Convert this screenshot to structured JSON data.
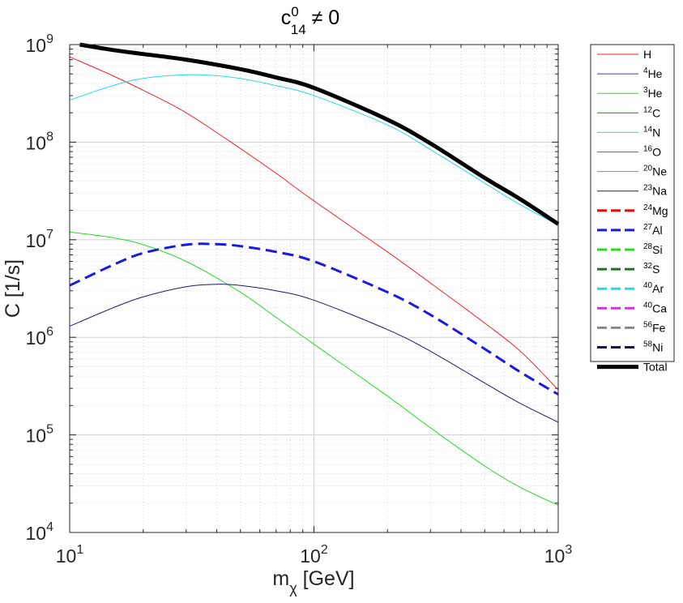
{
  "chart_data": {
    "type": "line",
    "title": {
      "base": "c",
      "sup": "0",
      "sub": "14",
      "rest": " ≠ 0"
    },
    "xlabel": {
      "base": "m",
      "sub": "χ",
      "rest": " [GeV]"
    },
    "ylabel": "C [1/s]",
    "xscale": "log",
    "yscale": "log",
    "xlim": [
      10,
      1000
    ],
    "ylim": [
      10000,
      1000000000
    ],
    "grid": true,
    "legend_position": "outside-right",
    "xticks": [
      {
        "value": 10,
        "base": "10",
        "exp": "1"
      },
      {
        "value": 100,
        "base": "10",
        "exp": "2"
      },
      {
        "value": 1000,
        "base": "10",
        "exp": "3"
      }
    ],
    "yticks": [
      {
        "value": 10000,
        "base": "10",
        "exp": "4"
      },
      {
        "value": 100000,
        "base": "10",
        "exp": "5"
      },
      {
        "value": 1000000,
        "base": "10",
        "exp": "6"
      },
      {
        "value": 10000000,
        "base": "10",
        "exp": "7"
      },
      {
        "value": 100000000,
        "base": "10",
        "exp": "8"
      },
      {
        "value": 1000000000,
        "base": "10",
        "exp": "9"
      }
    ],
    "series": [
      {
        "name": "H",
        "mass": "",
        "label": "H",
        "color": "#ff2020",
        "style": "solid",
        "width": 1,
        "x": [
          10,
          15,
          20,
          30,
          50,
          70,
          100,
          200,
          300,
          500,
          700,
          1000
        ],
        "y": [
          750000000,
          480000000,
          340000000,
          200000000,
          86000000,
          48000000,
          25000000,
          7500000,
          3600000,
          1400000,
          720000,
          290000
        ]
      },
      {
        "name": "4He",
        "mass": "4",
        "label": "He",
        "color": "#3a3aaa",
        "style": "solid",
        "width": 1,
        "x": [],
        "y": []
      },
      {
        "name": "3He",
        "mass": "3",
        "label": "He",
        "color": "#22dd22",
        "style": "solid",
        "width": 1,
        "x": [
          10,
          15,
          20,
          30,
          50,
          70,
          100,
          200,
          300,
          500,
          700,
          1000
        ],
        "y": [
          12000000,
          10500000,
          8900000,
          6000000,
          2900000,
          1600000,
          850000,
          250000,
          118000,
          48000,
          29000,
          19000
        ]
      },
      {
        "name": "12C",
        "mass": "12",
        "label": "C",
        "color": "#188818",
        "style": "solid",
        "width": 1,
        "x": [],
        "y": []
      },
      {
        "name": "14N",
        "mass": "14",
        "label": "N",
        "color": "#22dddd",
        "style": "solid",
        "width": 1,
        "x": [
          10,
          15,
          20,
          30,
          40,
          50,
          70,
          100,
          200,
          300,
          500,
          700,
          1000
        ],
        "y": [
          270000000,
          380000000,
          450000000,
          490000000,
          480000000,
          450000000,
          380000000,
          300000000,
          150000000,
          84000000,
          38000000,
          22800000,
          14200000
        ]
      },
      {
        "name": "16O",
        "mass": "16",
        "label": "O",
        "color": "#dd22dd",
        "style": "solid",
        "width": 1,
        "x": [],
        "y": []
      },
      {
        "name": "20Ne",
        "mass": "20",
        "label": "Ne",
        "color": "#888888",
        "style": "solid",
        "width": 1,
        "x": [],
        "y": []
      },
      {
        "name": "23Na",
        "mass": "23",
        "label": "Na",
        "color": "#1a1a70",
        "style": "solid",
        "width": 1,
        "x": [
          10,
          15,
          20,
          30,
          40,
          50,
          70,
          100,
          200,
          300,
          500,
          700,
          1000
        ],
        "y": [
          1300000,
          2000000,
          2600000,
          3300000,
          3500000,
          3400000,
          3000000,
          2400000,
          1200000,
          720000,
          340000,
          210000,
          135000
        ]
      },
      {
        "name": "24Mg",
        "mass": "24",
        "label": "Mg",
        "color": "#dd1010",
        "style": "dashed",
        "width": 3,
        "x": [],
        "y": []
      },
      {
        "name": "27Al",
        "mass": "27",
        "label": "Al",
        "color": "#1a1ae0",
        "style": "dashed",
        "width": 3,
        "x": [
          10,
          15,
          20,
          30,
          40,
          50,
          70,
          100,
          200,
          300,
          500,
          700,
          1000
        ],
        "y": [
          3400000,
          5500000,
          7300000,
          8900000,
          9000000,
          8600000,
          7500000,
          6000000,
          2900000,
          1700000,
          760000,
          440000,
          260000
        ]
      },
      {
        "name": "28Si",
        "mass": "28",
        "label": "Si",
        "color": "#22dd22",
        "style": "dashed",
        "width": 3,
        "x": [],
        "y": []
      },
      {
        "name": "32S",
        "mass": "32",
        "label": "S",
        "color": "#187818",
        "style": "dashed",
        "width": 3,
        "x": [],
        "y": []
      },
      {
        "name": "40Ar",
        "mass": "40",
        "label": "Ar",
        "color": "#22dddd",
        "style": "dashed",
        "width": 3,
        "x": [],
        "y": []
      },
      {
        "name": "40Ca",
        "mass": "40",
        "label": "Ca",
        "color": "#ee22ee",
        "style": "dashed",
        "width": 3,
        "x": [],
        "y": []
      },
      {
        "name": "56Fe",
        "mass": "56",
        "label": "Fe",
        "color": "#888888",
        "style": "dashed",
        "width": 3,
        "x": [],
        "y": []
      },
      {
        "name": "58Ni",
        "mass": "58",
        "label": "Ni",
        "color": "#101070",
        "style": "dashed",
        "width": 3,
        "x": [],
        "y": []
      },
      {
        "name": "Total",
        "mass": "",
        "label": "Total",
        "color": "#000000",
        "style": "solid",
        "width": 5,
        "x": [
          11,
          15,
          20,
          30,
          50,
          70,
          100,
          200,
          300,
          500,
          700,
          1000
        ],
        "y": [
          1000000000,
          880000000,
          800000000,
          700000000,
          560000000,
          460000000,
          360000000,
          170000000,
          97000000,
          43000000,
          26000000,
          14500000
        ]
      }
    ]
  }
}
